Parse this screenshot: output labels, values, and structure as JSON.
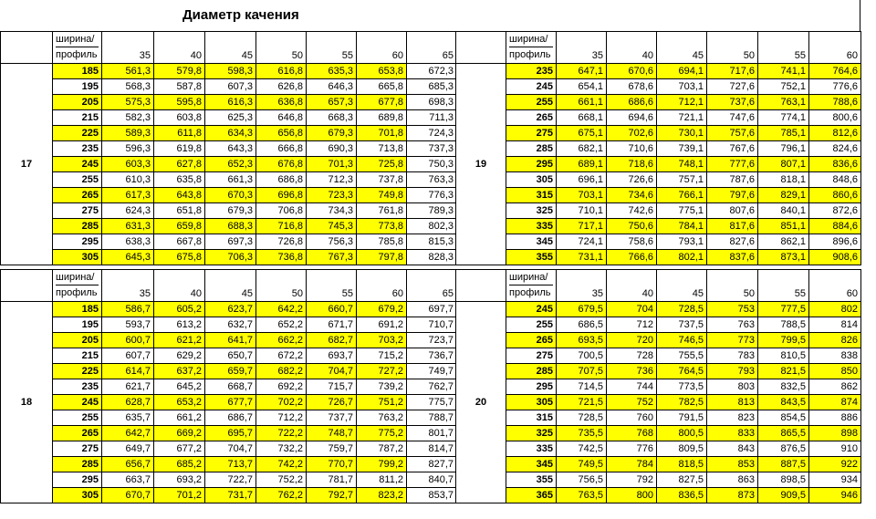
{
  "title": "Диаметр качения",
  "colors": {
    "highlight": "#ffff00",
    "grid": "#000000"
  },
  "header_label_1": "ширина/",
  "header_label_2": "профиль",
  "blocks": [
    {
      "rim": "17",
      "profiles": [
        "35",
        "40",
        "45",
        "50",
        "55",
        "60",
        "65"
      ],
      "rows": [
        {
          "w": "185",
          "v": [
            "561,3",
            "579,8",
            "598,3",
            "616,8",
            "635,3",
            "653,8",
            "672,3"
          ],
          "hl": true
        },
        {
          "w": "195",
          "v": [
            "568,3",
            "587,8",
            "607,3",
            "626,8",
            "646,3",
            "665,8",
            "685,3"
          ],
          "hl": false
        },
        {
          "w": "205",
          "v": [
            "575,3",
            "595,8",
            "616,3",
            "636,8",
            "657,3",
            "677,8",
            "698,3"
          ],
          "hl": true
        },
        {
          "w": "215",
          "v": [
            "582,3",
            "603,8",
            "625,3",
            "646,8",
            "668,3",
            "689,8",
            "711,3"
          ],
          "hl": false
        },
        {
          "w": "225",
          "v": [
            "589,3",
            "611,8",
            "634,3",
            "656,8",
            "679,3",
            "701,8",
            "724,3"
          ],
          "hl": true
        },
        {
          "w": "235",
          "v": [
            "596,3",
            "619,8",
            "643,3",
            "666,8",
            "690,3",
            "713,8",
            "737,3"
          ],
          "hl": false
        },
        {
          "w": "245",
          "v": [
            "603,3",
            "627,8",
            "652,3",
            "676,8",
            "701,3",
            "725,8",
            "750,3"
          ],
          "hl": true
        },
        {
          "w": "255",
          "v": [
            "610,3",
            "635,8",
            "661,3",
            "686,8",
            "712,3",
            "737,8",
            "763,3"
          ],
          "hl": false
        },
        {
          "w": "265",
          "v": [
            "617,3",
            "643,8",
            "670,3",
            "696,8",
            "723,3",
            "749,8",
            "776,3"
          ],
          "hl": true
        },
        {
          "w": "275",
          "v": [
            "624,3",
            "651,8",
            "679,3",
            "706,8",
            "734,3",
            "761,8",
            "789,3"
          ],
          "hl": false
        },
        {
          "w": "285",
          "v": [
            "631,3",
            "659,8",
            "688,3",
            "716,8",
            "745,3",
            "773,8",
            "802,3"
          ],
          "hl": true
        },
        {
          "w": "295",
          "v": [
            "638,3",
            "667,8",
            "697,3",
            "726,8",
            "756,3",
            "785,8",
            "815,3"
          ],
          "hl": false
        },
        {
          "w": "305",
          "v": [
            "645,3",
            "675,8",
            "706,3",
            "736,8",
            "767,3",
            "797,8",
            "828,3"
          ],
          "hl": true
        }
      ]
    },
    {
      "rim": "19",
      "profiles": [
        "35",
        "40",
        "45",
        "50",
        "55",
        "60"
      ],
      "rows": [
        {
          "w": "235",
          "v": [
            "647,1",
            "670,6",
            "694,1",
            "717,6",
            "741,1",
            "764,6"
          ],
          "hl": true
        },
        {
          "w": "245",
          "v": [
            "654,1",
            "678,6",
            "703,1",
            "727,6",
            "752,1",
            "776,6"
          ],
          "hl": false
        },
        {
          "w": "255",
          "v": [
            "661,1",
            "686,6",
            "712,1",
            "737,6",
            "763,1",
            "788,6"
          ],
          "hl": true
        },
        {
          "w": "265",
          "v": [
            "668,1",
            "694,6",
            "721,1",
            "747,6",
            "774,1",
            "800,6"
          ],
          "hl": false
        },
        {
          "w": "275",
          "v": [
            "675,1",
            "702,6",
            "730,1",
            "757,6",
            "785,1",
            "812,6"
          ],
          "hl": true
        },
        {
          "w": "285",
          "v": [
            "682,1",
            "710,6",
            "739,1",
            "767,6",
            "796,1",
            "824,6"
          ],
          "hl": false
        },
        {
          "w": "295",
          "v": [
            "689,1",
            "718,6",
            "748,1",
            "777,6",
            "807,1",
            "836,6"
          ],
          "hl": true
        },
        {
          "w": "305",
          "v": [
            "696,1",
            "726,6",
            "757,1",
            "787,6",
            "818,1",
            "848,6"
          ],
          "hl": false
        },
        {
          "w": "315",
          "v": [
            "703,1",
            "734,6",
            "766,1",
            "797,6",
            "829,1",
            "860,6"
          ],
          "hl": true
        },
        {
          "w": "325",
          "v": [
            "710,1",
            "742,6",
            "775,1",
            "807,6",
            "840,1",
            "872,6"
          ],
          "hl": false
        },
        {
          "w": "335",
          "v": [
            "717,1",
            "750,6",
            "784,1",
            "817,6",
            "851,1",
            "884,6"
          ],
          "hl": true
        },
        {
          "w": "345",
          "v": [
            "724,1",
            "758,6",
            "793,1",
            "827,6",
            "862,1",
            "896,6"
          ],
          "hl": false
        },
        {
          "w": "355",
          "v": [
            "731,1",
            "766,6",
            "802,1",
            "837,6",
            "873,1",
            "908,6"
          ],
          "hl": true
        }
      ]
    },
    {
      "rim": "18",
      "profiles": [
        "35",
        "40",
        "45",
        "50",
        "55",
        "60",
        "65"
      ],
      "rows": [
        {
          "w": "185",
          "v": [
            "586,7",
            "605,2",
            "623,7",
            "642,2",
            "660,7",
            "679,2",
            "697,7"
          ],
          "hl": true
        },
        {
          "w": "195",
          "v": [
            "593,7",
            "613,2",
            "632,7",
            "652,2",
            "671,7",
            "691,2",
            "710,7"
          ],
          "hl": false
        },
        {
          "w": "205",
          "v": [
            "600,7",
            "621,2",
            "641,7",
            "662,2",
            "682,7",
            "703,2",
            "723,7"
          ],
          "hl": true
        },
        {
          "w": "215",
          "v": [
            "607,7",
            "629,2",
            "650,7",
            "672,2",
            "693,7",
            "715,2",
            "736,7"
          ],
          "hl": false
        },
        {
          "w": "225",
          "v": [
            "614,7",
            "637,2",
            "659,7",
            "682,2",
            "704,7",
            "727,2",
            "749,7"
          ],
          "hl": true
        },
        {
          "w": "235",
          "v": [
            "621,7",
            "645,2",
            "668,7",
            "692,2",
            "715,7",
            "739,2",
            "762,7"
          ],
          "hl": false
        },
        {
          "w": "245",
          "v": [
            "628,7",
            "653,2",
            "677,7",
            "702,2",
            "726,7",
            "751,2",
            "775,7"
          ],
          "hl": true
        },
        {
          "w": "255",
          "v": [
            "635,7",
            "661,2",
            "686,7",
            "712,2",
            "737,7",
            "763,2",
            "788,7"
          ],
          "hl": false
        },
        {
          "w": "265",
          "v": [
            "642,7",
            "669,2",
            "695,7",
            "722,2",
            "748,7",
            "775,2",
            "801,7"
          ],
          "hl": true
        },
        {
          "w": "275",
          "v": [
            "649,7",
            "677,2",
            "704,7",
            "732,2",
            "759,7",
            "787,2",
            "814,7"
          ],
          "hl": false
        },
        {
          "w": "285",
          "v": [
            "656,7",
            "685,2",
            "713,7",
            "742,2",
            "770,7",
            "799,2",
            "827,7"
          ],
          "hl": true
        },
        {
          "w": "295",
          "v": [
            "663,7",
            "693,2",
            "722,7",
            "752,2",
            "781,7",
            "811,2",
            "840,7"
          ],
          "hl": false
        },
        {
          "w": "305",
          "v": [
            "670,7",
            "701,2",
            "731,7",
            "762,2",
            "792,7",
            "823,2",
            "853,7"
          ],
          "hl": true
        }
      ]
    },
    {
      "rim": "20",
      "profiles": [
        "35",
        "40",
        "45",
        "50",
        "55",
        "60"
      ],
      "rows": [
        {
          "w": "245",
          "v": [
            "679,5",
            "704",
            "728,5",
            "753",
            "777,5",
            "802"
          ],
          "hl": true
        },
        {
          "w": "255",
          "v": [
            "686,5",
            "712",
            "737,5",
            "763",
            "788,5",
            "814"
          ],
          "hl": false
        },
        {
          "w": "265",
          "v": [
            "693,5",
            "720",
            "746,5",
            "773",
            "799,5",
            "826"
          ],
          "hl": true
        },
        {
          "w": "275",
          "v": [
            "700,5",
            "728",
            "755,5",
            "783",
            "810,5",
            "838"
          ],
          "hl": false
        },
        {
          "w": "285",
          "v": [
            "707,5",
            "736",
            "764,5",
            "793",
            "821,5",
            "850"
          ],
          "hl": true
        },
        {
          "w": "295",
          "v": [
            "714,5",
            "744",
            "773,5",
            "803",
            "832,5",
            "862"
          ],
          "hl": false
        },
        {
          "w": "305",
          "v": [
            "721,5",
            "752",
            "782,5",
            "813",
            "843,5",
            "874"
          ],
          "hl": true
        },
        {
          "w": "315",
          "v": [
            "728,5",
            "760",
            "791,5",
            "823",
            "854,5",
            "886"
          ],
          "hl": false
        },
        {
          "w": "325",
          "v": [
            "735,5",
            "768",
            "800,5",
            "833",
            "865,5",
            "898"
          ],
          "hl": true
        },
        {
          "w": "335",
          "v": [
            "742,5",
            "776",
            "809,5",
            "843",
            "876,5",
            "910"
          ],
          "hl": false
        },
        {
          "w": "345",
          "v": [
            "749,5",
            "784",
            "818,5",
            "853",
            "887,5",
            "922"
          ],
          "hl": true
        },
        {
          "w": "355",
          "v": [
            "756,5",
            "792",
            "827,5",
            "863",
            "898,5",
            "934"
          ],
          "hl": false
        },
        {
          "w": "365",
          "v": [
            "763,5",
            "800",
            "836,5",
            "873",
            "909,5",
            "946"
          ],
          "hl": true
        }
      ]
    }
  ]
}
